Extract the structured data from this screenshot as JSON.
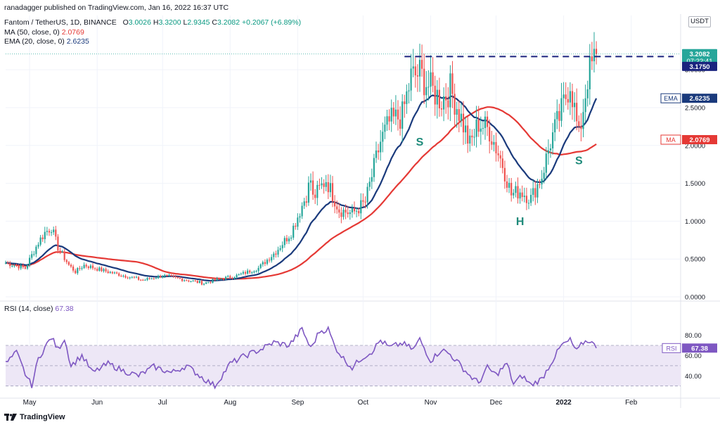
{
  "header": {
    "publisher": "ranadagger published on TradingView.com, Jan 16, 2022 16:37 UTC",
    "symbol": "Fantom / TetherUS, 1D, BINANCE",
    "ohlc": [
      {
        "label": "O",
        "value": "3.0026"
      },
      {
        "label": "H",
        "value": "3.3200"
      },
      {
        "label": "L",
        "value": "2.9345"
      },
      {
        "label": "C",
        "value": "3.2082"
      }
    ],
    "change": "+0.2067 (+6.89%)",
    "ma_label": "MA (50, close, 0)",
    "ma_value": "2.0769",
    "ema_label": "EMA (20, close, 0)",
    "ema_value": "2.6235"
  },
  "currency_unit": "USDT",
  "rsi_header": {
    "label": "RSI (14, close)",
    "value": "67.38"
  },
  "footer": {
    "brand": "TradingView"
  },
  "colors": {
    "up": "#26a69a",
    "down": "#ef5350",
    "ma": "#e53935",
    "ema": "#1a3a7c",
    "rsi": "#7e57c2",
    "level": "#1a237e",
    "pattern": "#1e8a7a"
  },
  "chart_data": [
    {
      "type": "candlestick",
      "title": "Fantom / TetherUS, 1D, BINANCE",
      "ylim": [
        0,
        3.55
      ],
      "y_ticks": [
        "0.0000",
        "0.5000",
        "1.0000",
        "1.5000",
        "2.0000",
        "2.5000",
        "3.0000"
      ],
      "x_ticks": [
        "May",
        "Jun",
        "Jul",
        "Aug",
        "Sep",
        "Oct",
        "Nov",
        "Dec",
        "2022",
        "Feb"
      ],
      "price_labels": [
        {
          "text": "3.2082",
          "sub": "07:22:41",
          "value": 3.2082
        },
        {
          "text": "3.1750",
          "value": 3.175
        },
        {
          "text": "EMA",
          "value_text": "2.6235",
          "value": 2.6235
        },
        {
          "text": "MA",
          "value_text": "2.0769",
          "value": 2.0769
        }
      ],
      "annotations": [
        {
          "text": "S",
          "date": "2021-10-27",
          "price": 2.0
        },
        {
          "text": "H",
          "date": "2021-12-12",
          "price": 0.95
        },
        {
          "text": "S",
          "date": "2022-01-08",
          "price": 1.75
        }
      ],
      "resistance_level": 3.175,
      "resistance_from": "2021-10-20",
      "anchors": [
        [
          "2021-04-20",
          0.45
        ],
        [
          "2021-04-29",
          0.38
        ],
        [
          "2021-05-05",
          0.72
        ],
        [
          "2021-05-08",
          0.85
        ],
        [
          "2021-05-11",
          0.92
        ],
        [
          "2021-05-14",
          0.65
        ],
        [
          "2021-05-19",
          0.42
        ],
        [
          "2021-05-22",
          0.33
        ],
        [
          "2021-05-26",
          0.42
        ],
        [
          "2021-06-06",
          0.33
        ],
        [
          "2021-06-22",
          0.22
        ],
        [
          "2021-07-01",
          0.28
        ],
        [
          "2021-07-20",
          0.18
        ],
        [
          "2021-07-25",
          0.22
        ],
        [
          "2021-08-04",
          0.28
        ],
        [
          "2021-08-14",
          0.38
        ],
        [
          "2021-08-22",
          0.6
        ],
        [
          "2021-08-29",
          0.85
        ],
        [
          "2021-09-05",
          1.35
        ],
        [
          "2021-09-07",
          1.55
        ],
        [
          "2021-09-08",
          1.3
        ],
        [
          "2021-09-14",
          1.55
        ],
        [
          "2021-09-20",
          1.15
        ],
        [
          "2021-09-26",
          1.1
        ],
        [
          "2021-10-02",
          1.25
        ],
        [
          "2021-10-09",
          2.05
        ],
        [
          "2021-10-13",
          2.3
        ],
        [
          "2021-10-19",
          2.4
        ],
        [
          "2021-10-23",
          2.9
        ],
        [
          "2021-10-27",
          2.95
        ],
        [
          "2021-11-01",
          2.75
        ],
        [
          "2021-11-06",
          2.6
        ],
        [
          "2021-11-10",
          2.75
        ],
        [
          "2021-11-14",
          2.45
        ],
        [
          "2021-11-19",
          2.0
        ],
        [
          "2021-11-23",
          2.3
        ],
        [
          "2021-11-28",
          2.2
        ],
        [
          "2021-12-04",
          1.75
        ],
        [
          "2021-12-08",
          1.35
        ],
        [
          "2021-12-12",
          1.4
        ],
        [
          "2021-12-17",
          1.3
        ],
        [
          "2021-12-22",
          1.6
        ],
        [
          "2021-12-26",
          2.05
        ],
        [
          "2021-12-31",
          2.45
        ],
        [
          "2022-01-04",
          2.85
        ],
        [
          "2022-01-08",
          2.1
        ],
        [
          "2022-01-12",
          2.9
        ],
        [
          "2022-01-16",
          3.2082
        ]
      ]
    },
    {
      "type": "line",
      "title": "RSI (14, close)",
      "ylim": [
        27,
        95
      ],
      "y_ticks": [
        "40.00",
        "60.00",
        "80.00"
      ],
      "band": [
        30,
        70
      ],
      "midline": 50,
      "last_label": {
        "text": "RSI",
        "value_text": "67.38",
        "value": 67.38
      },
      "anchors": [
        [
          "2021-04-20",
          52
        ],
        [
          "2021-04-25",
          63
        ],
        [
          "2021-04-29",
          42
        ],
        [
          "2021-05-02",
          30
        ],
        [
          "2021-05-05",
          57
        ],
        [
          "2021-05-08",
          68
        ],
        [
          "2021-05-11",
          78
        ],
        [
          "2021-05-14",
          66
        ],
        [
          "2021-05-17",
          77
        ],
        [
          "2021-05-20",
          50
        ],
        [
          "2021-05-25",
          60
        ],
        [
          "2021-05-30",
          43
        ],
        [
          "2021-06-06",
          52
        ],
        [
          "2021-06-13",
          45
        ],
        [
          "2021-06-20",
          40
        ],
        [
          "2021-06-27",
          49
        ],
        [
          "2021-07-05",
          43
        ],
        [
          "2021-07-12",
          50
        ],
        [
          "2021-07-20",
          37
        ],
        [
          "2021-07-25",
          30
        ],
        [
          "2021-08-01",
          52
        ],
        [
          "2021-08-08",
          60
        ],
        [
          "2021-08-15",
          66
        ],
        [
          "2021-08-21",
          73
        ],
        [
          "2021-08-28",
          70
        ],
        [
          "2021-09-03",
          86
        ],
        [
          "2021-09-07",
          67
        ],
        [
          "2021-09-11",
          84
        ],
        [
          "2021-09-15",
          86
        ],
        [
          "2021-09-18",
          69
        ],
        [
          "2021-09-22",
          57
        ],
        [
          "2021-09-26",
          48
        ],
        [
          "2021-09-30",
          57
        ],
        [
          "2021-10-05",
          64
        ],
        [
          "2021-10-09",
          75
        ],
        [
          "2021-10-13",
          68
        ],
        [
          "2021-10-19",
          72
        ],
        [
          "2021-10-24",
          66
        ],
        [
          "2021-10-27",
          76
        ],
        [
          "2021-11-01",
          55
        ],
        [
          "2021-11-06",
          66
        ],
        [
          "2021-11-10",
          61
        ],
        [
          "2021-11-14",
          52
        ],
        [
          "2021-11-19",
          40
        ],
        [
          "2021-11-23",
          33
        ],
        [
          "2021-11-27",
          48
        ],
        [
          "2021-12-01",
          41
        ],
        [
          "2021-12-06",
          52
        ],
        [
          "2021-12-09",
          32
        ],
        [
          "2021-12-13",
          40
        ],
        [
          "2021-12-17",
          31
        ],
        [
          "2021-12-22",
          37
        ],
        [
          "2021-12-26",
          52
        ],
        [
          "2021-12-31",
          70
        ],
        [
          "2022-01-04",
          75
        ],
        [
          "2022-01-07",
          64
        ],
        [
          "2022-01-10",
          73
        ],
        [
          "2022-01-13",
          75
        ],
        [
          "2022-01-16",
          67.38
        ]
      ]
    }
  ]
}
